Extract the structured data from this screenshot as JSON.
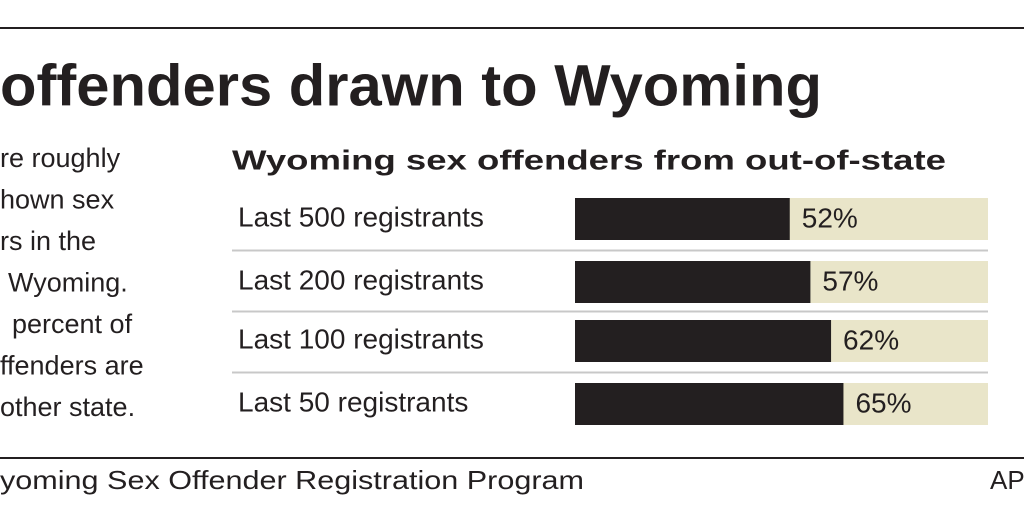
{
  "headline": "offenders drawn to Wyoming",
  "body_lines": [
    "re roughly",
    "hown sex",
    "rs in the",
    "Wyoming.",
    "percent of",
    "ffenders are",
    "other state."
  ],
  "source": "yoming Sex Offender Registration Program",
  "credit": "AP",
  "chart_data": {
    "type": "bar",
    "orientation": "horizontal",
    "title": "Wyoming sex offenders from out-of-state",
    "categories": [
      "Last 500 registrants",
      "Last 200 registrants",
      "Last 100 registrants",
      "Last 50 registrants"
    ],
    "values": [
      52,
      57,
      62,
      65
    ],
    "value_labels": [
      "52%",
      "57%",
      "62%",
      "65%"
    ],
    "color": "#231f20",
    "track_color": "#e9e5c9",
    "xlim": [
      0,
      100
    ]
  }
}
